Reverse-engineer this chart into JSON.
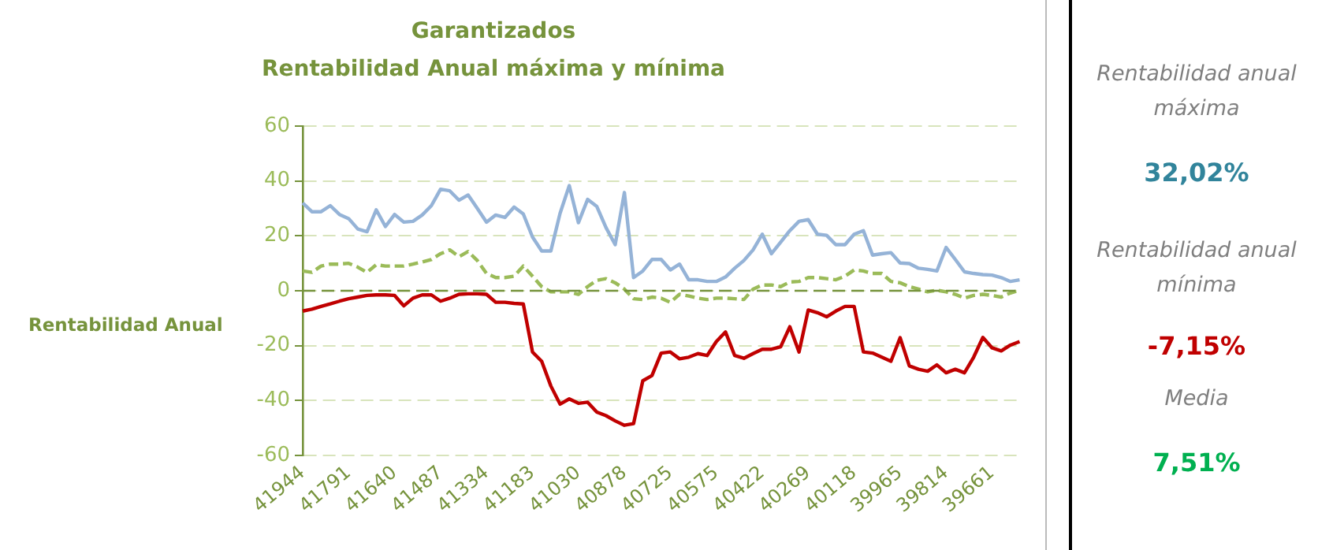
{
  "chart_data": {
    "type": "line",
    "title": "Garantizados",
    "subtitle": "Rentabilidad Anual máxima y mínima",
    "ylabel": "Rentabilidad Anual",
    "categories": [
      "41944",
      null,
      null,
      null,
      null,
      "41791",
      null,
      null,
      null,
      null,
      "41640",
      null,
      null,
      null,
      null,
      "41487",
      null,
      null,
      null,
      null,
      "41334",
      null,
      null,
      null,
      null,
      "41183",
      null,
      null,
      null,
      null,
      "41030",
      null,
      null,
      null,
      null,
      "40878",
      null,
      null,
      null,
      null,
      "40725",
      null,
      null,
      null,
      null,
      "40575",
      null,
      null,
      null,
      null,
      "40422",
      null,
      null,
      null,
      null,
      "40269",
      null,
      null,
      null,
      null,
      "40118",
      null,
      null,
      null,
      null,
      "39965",
      null,
      null,
      null,
      null,
      "39814",
      null,
      null,
      null,
      null,
      "39661",
      null,
      null,
      null
    ],
    "series": [
      {
        "color": "#95b3d7",
        "line_style": "solid",
        "values": [
          32,
          28.8,
          28.8,
          31,
          27.8,
          26.3,
          22.5,
          21.5,
          29.5,
          23.4,
          27.8,
          25,
          25.3,
          27.6,
          31,
          37,
          36.4,
          33,
          34.9,
          30,
          25,
          27.6,
          26.7,
          30.5,
          28,
          19.6,
          14.5,
          14.5,
          28.2,
          38.3,
          24.8,
          33.3,
          30.7,
          23,
          16.8,
          35.8,
          4.8,
          7.2,
          11.4,
          11.4,
          7.6,
          9.7,
          4,
          4,
          3.4,
          3.4,
          5,
          8.2,
          11,
          14.9,
          20.6,
          13.5,
          17.7,
          21.9,
          25.3,
          25.9,
          20.6,
          20.2,
          16.8,
          16.8,
          20.6,
          21.9,
          13,
          13.5,
          13.9,
          10.1,
          9.9,
          8.2,
          7.8,
          7.2,
          15.8,
          11.4,
          6.9,
          6.3,
          5.9,
          5.7,
          4.8,
          3.4,
          4
        ]
      },
      {
        "color": "#9bbb59",
        "line_style": "dashed",
        "values": [
          7.2,
          6.7,
          9,
          9.7,
          9.7,
          10,
          8.6,
          6.7,
          9.5,
          9,
          9,
          9,
          9.7,
          10.5,
          11.4,
          13.5,
          14.9,
          12.4,
          14.3,
          11,
          6.3,
          4.8,
          4.8,
          5.3,
          9,
          5.3,
          1.5,
          -0.4,
          -0.4,
          -0.4,
          -1.3,
          1.5,
          3.8,
          4.4,
          2.9,
          0.6,
          -2.9,
          -3.2,
          -2.3,
          -2.7,
          -4.2,
          -1.3,
          -1.9,
          -2.7,
          -3.2,
          -2.7,
          -2.7,
          -2.9,
          -3.2,
          0.6,
          2.1,
          2.1,
          1.5,
          3.2,
          3.4,
          4.8,
          4.8,
          4.4,
          4,
          5.3,
          7.6,
          7.2,
          6.3,
          6.3,
          3.4,
          2.9,
          1.5,
          0.6,
          -0.4,
          0.2,
          -0.4,
          -1.3,
          -2.7,
          -1.7,
          -1.3,
          -1.7,
          -2.3,
          -0.8,
          0.2
        ]
      },
      {
        "color": "#c00000",
        "line_style": "solid",
        "values": [
          -7.4,
          -6.7,
          -5.7,
          -4.8,
          -3.8,
          -2.9,
          -2.3,
          -1.7,
          -1.5,
          -1.5,
          -1.7,
          -5.5,
          -2.7,
          -1.5,
          -1.5,
          -3.8,
          -2.7,
          -1.3,
          -1.1,
          -1.1,
          -1.3,
          -4.2,
          -4.2,
          -4.6,
          -4.8,
          -22.3,
          -25.7,
          -34.7,
          -41.3,
          -39.4,
          -41,
          -40.6,
          -44.2,
          -45.5,
          -47.4,
          -49,
          -48.4,
          -32.8,
          -30.9,
          -22.7,
          -22.3,
          -24.8,
          -24.2,
          -22.9,
          -23.6,
          -18.5,
          -15,
          -23.6,
          -24.6,
          -22.9,
          -21.3,
          -21.3,
          -20.4,
          -13.1,
          -22.3,
          -7,
          -8,
          -9.5,
          -7.4,
          -5.7,
          -5.7,
          -22.3,
          -22.7,
          -24.2,
          -25.7,
          -17.1,
          -27.4,
          -28.6,
          -29.3,
          -27,
          -29.9,
          -28.6,
          -29.9,
          -24.2,
          -17,
          -20.8,
          -21.9,
          -19.8,
          -18.5
        ]
      }
    ],
    "ref_lines": [
      {
        "axis": "y",
        "value": 0,
        "color": "#76933c",
        "line_style": "dashed"
      }
    ],
    "ylim": [
      -60,
      60
    ],
    "yticks": [
      -60,
      -40,
      -20,
      0,
      20,
      40,
      60
    ],
    "grid": "y",
    "legend": false,
    "marker": "none",
    "annotations": [
      "Rentabilidad anual máxima",
      "32,02%",
      "Rentabilidad anual mínima",
      "-7,15%",
      "Media",
      "7,51%"
    ]
  }
}
